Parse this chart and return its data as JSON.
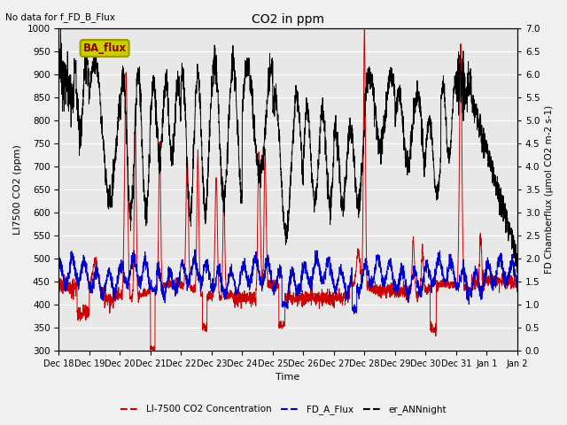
{
  "title": "CO2 in ppm",
  "top_left_text": "No data for f_FD_B_Flux",
  "legend_box_text": "BA_flux",
  "ylabel_left": "LI7500 CO2 (ppm)",
  "ylabel_right": "FD Chamberflux (μmol CO2 m-2 s-1)",
  "xlabel": "Time",
  "ylim_left": [
    300,
    1000
  ],
  "ylim_right": [
    0.0,
    7.0
  ],
  "yticks_left": [
    300,
    350,
    400,
    450,
    500,
    550,
    600,
    650,
    700,
    750,
    800,
    850,
    900,
    950,
    1000
  ],
  "yticks_right": [
    0.0,
    0.5,
    1.0,
    1.5,
    2.0,
    2.5,
    3.0,
    3.5,
    4.0,
    4.5,
    5.0,
    5.5,
    6.0,
    6.5,
    7.0
  ],
  "xtick_labels": [
    "Dec 18",
    "Dec 19",
    "Dec 20",
    "Dec 21",
    "Dec 22",
    "Dec 23",
    "Dec 24",
    "Dec 25",
    "Dec 26",
    "Dec 27",
    "Dec 28",
    "Dec 29",
    "Dec 30",
    "Dec 31",
    "Jan 1",
    "Jan 2"
  ],
  "line_red_color": "#cc0000",
  "line_blue_color": "#0000cc",
  "line_black_color": "#000000",
  "legend_box_color": "#cccc00",
  "legend_box_edge_color": "#999900",
  "bg_color": "#e8e8e8",
  "grid_color": "#ffffff",
  "fig_bg": "#f0f0f0"
}
